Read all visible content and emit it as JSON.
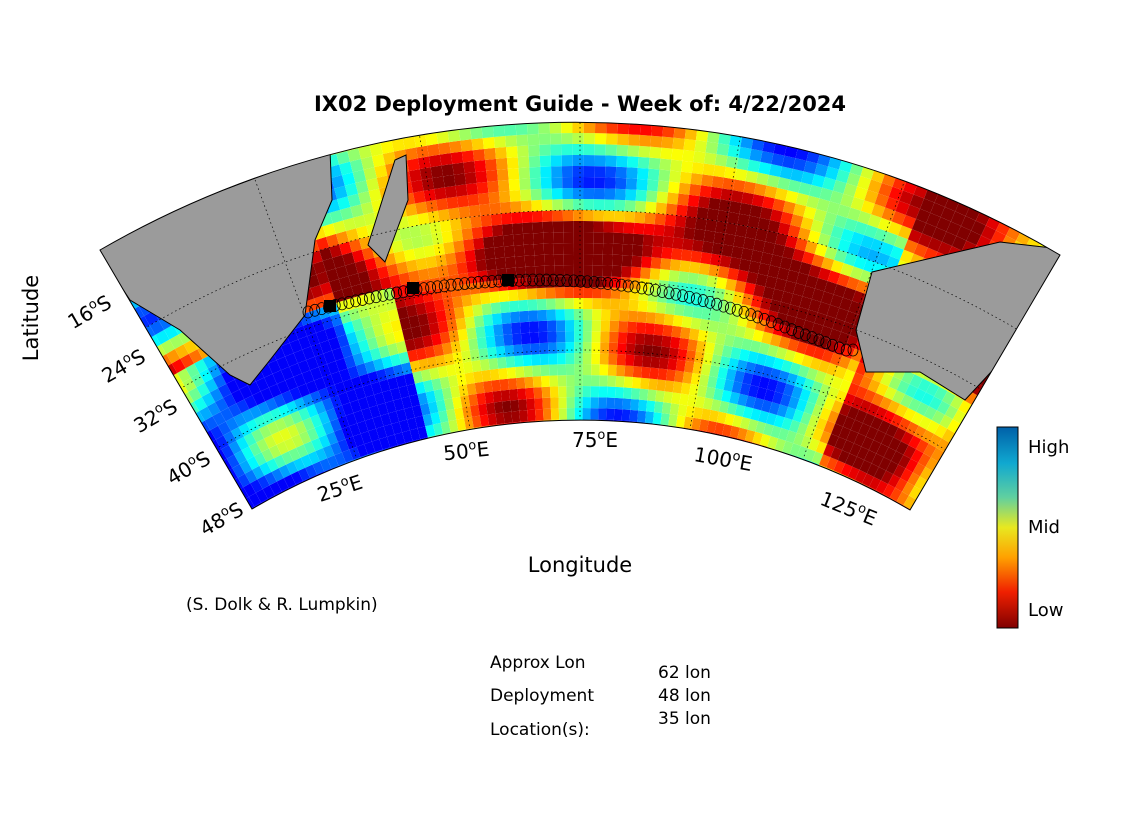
{
  "title": "IX02 Deployment Guide - Week of: 4/22/2024",
  "y_label": "Latitude",
  "x_label": "Longitude",
  "lat_ticks": [
    {
      "num": "16",
      "deg": "o",
      "dir": "S"
    },
    {
      "num": "24",
      "deg": "o",
      "dir": "S"
    },
    {
      "num": "32",
      "deg": "o",
      "dir": "S"
    },
    {
      "num": "40",
      "deg": "o",
      "dir": "S"
    },
    {
      "num": "48",
      "deg": "o",
      "dir": "S"
    }
  ],
  "lon_ticks": [
    {
      "num": "25",
      "deg": "o",
      "dir": "E"
    },
    {
      "num": "50",
      "deg": "o",
      "dir": "E"
    },
    {
      "num": "75",
      "deg": "o",
      "dir": "E"
    },
    {
      "num": "100",
      "deg": "o",
      "dir": "E"
    },
    {
      "num": "125",
      "deg": "o",
      "dir": "E"
    }
  ],
  "colorbar": {
    "high": "High",
    "mid": "Mid",
    "low": "Low"
  },
  "credit": "(S. Dolk & R. Lumpkin)",
  "deployment": {
    "labels": [
      "Approx Lon",
      "Deployment",
      "Location(s):"
    ],
    "locations": [
      "62 lon",
      "48 lon",
      "35 lon"
    ]
  }
}
